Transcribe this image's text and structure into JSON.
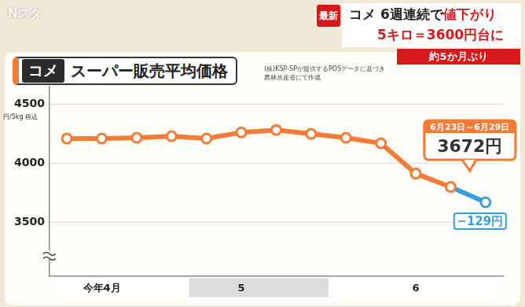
{
  "header": {
    "program": "Nスタ",
    "badge": "最新",
    "headline": [
      "コメ 6週連続で",
      "値下がり"
    ],
    "subheadline": "5キロ＝3600円台に",
    "banner": "約5か月ぶり"
  },
  "chart_data": {
    "type": "line",
    "title_tag": "コメ",
    "title": "スーパー販売平均価格",
    "source": [
      "(株)KSP-SPが提供するPOSデータに基づき",
      "農林水産省にて作成"
    ],
    "ylabel": "円/5kg 税込",
    "categories": [
      null,
      "今年4月",
      null,
      null,
      null,
      "5",
      null,
      null,
      null,
      null,
      "6",
      null,
      null
    ],
    "values": [
      4211,
      4211,
      4217,
      4230,
      4211,
      4263,
      4283,
      4250,
      4217,
      4171,
      3914,
      3801,
      3672
    ],
    "color": "#f47b35",
    "colors": [
      "#f47b35",
      "#f47b35",
      "#f47b35",
      "#f47b35",
      "#f47b35",
      "#f47b35",
      "#f47b35",
      "#f47b35",
      "#f47b35",
      "#f47b35",
      "#f47b35",
      "#f47b35",
      "#3a9fd8"
    ],
    "marker": "circle",
    "ylim": [
      3050,
      4650
    ],
    "yticks": [
      3500,
      4000,
      4500
    ],
    "grid": true,
    "annotations": {
      "period": "6月23日～6月29日",
      "price": "3672円",
      "change": "−129円"
    }
  }
}
